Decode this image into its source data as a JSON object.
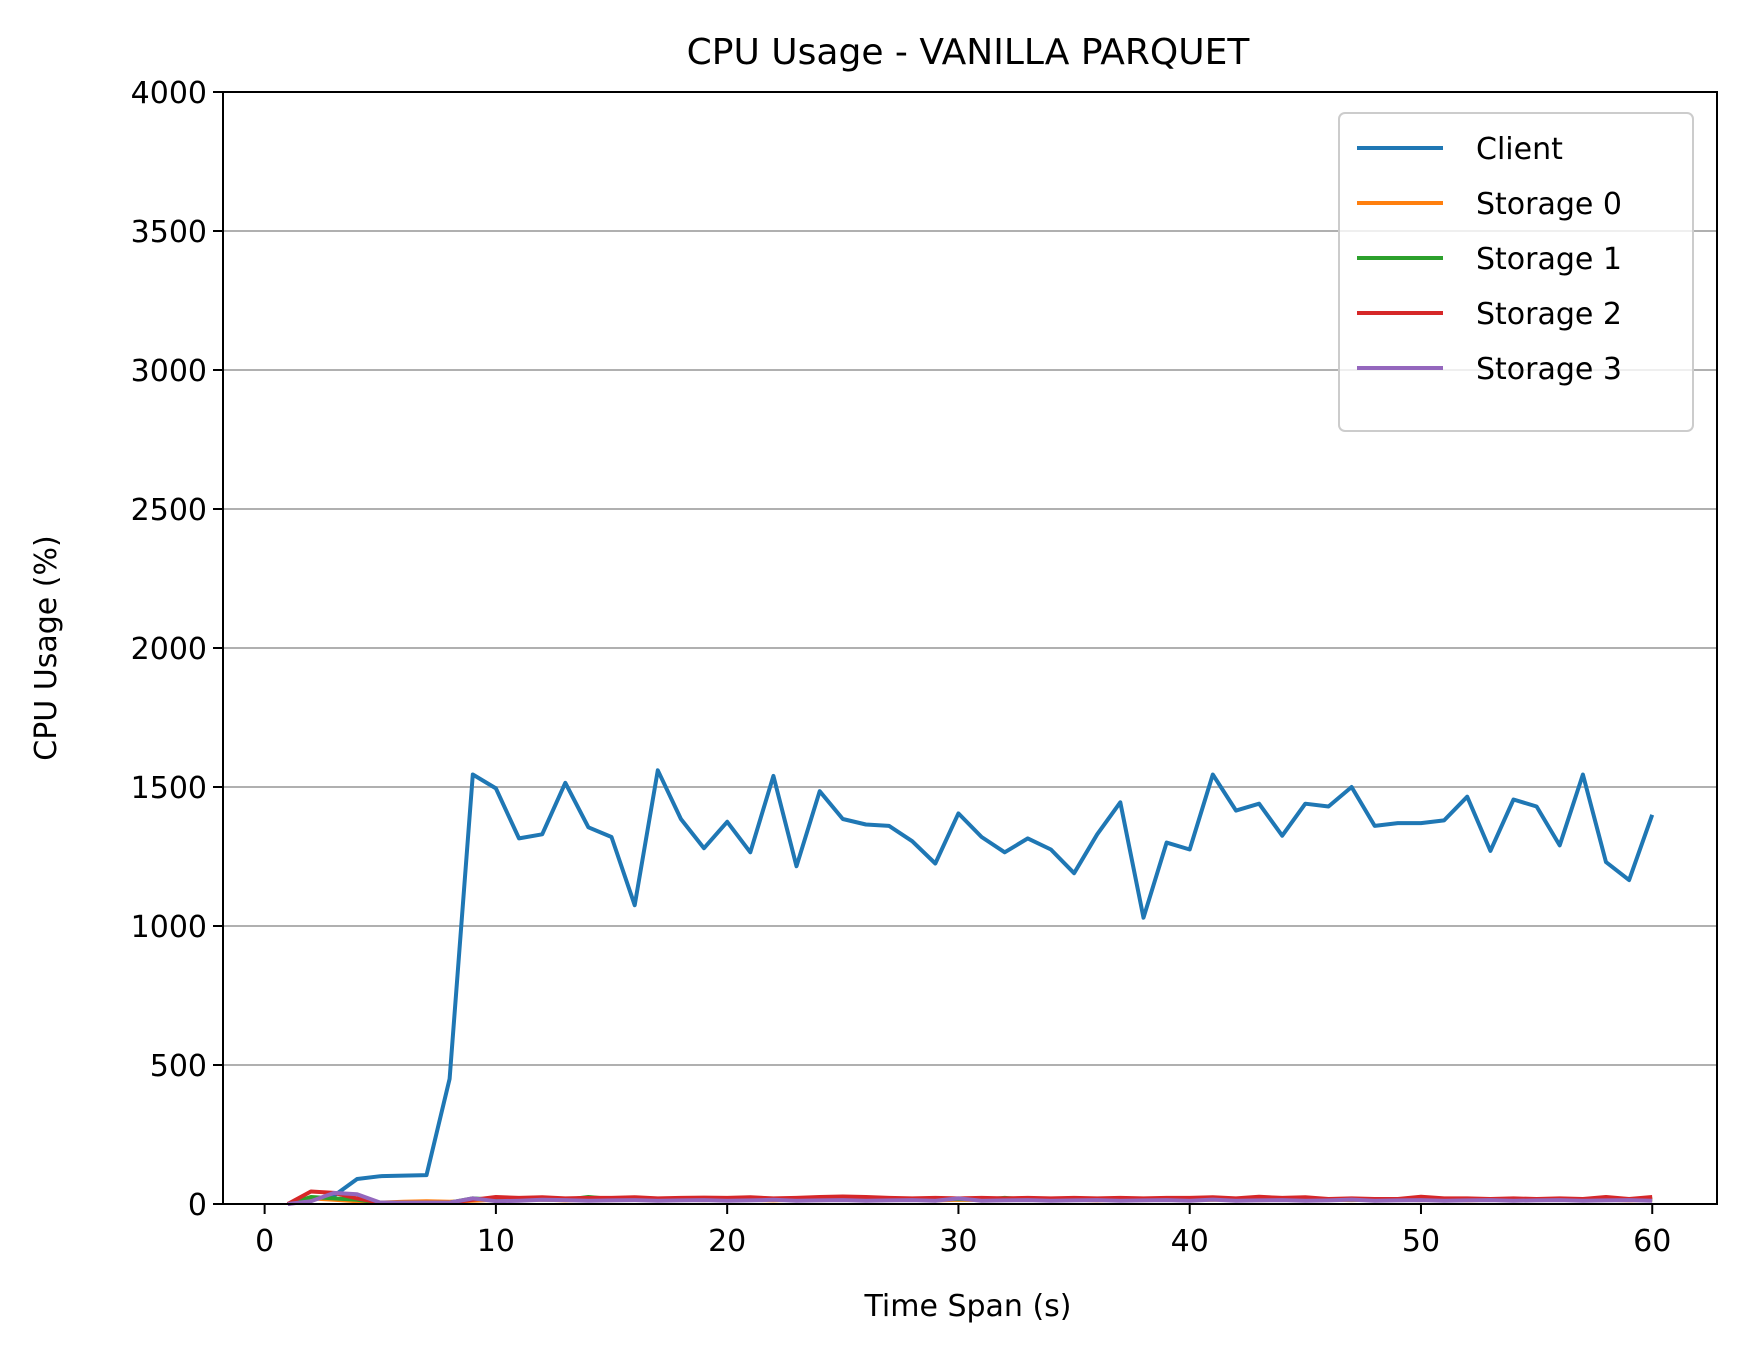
{
  "chart_data": {
    "type": "line",
    "title": "CPU Usage - VANILLA PARQUET",
    "xlabel": "Time Span (s)",
    "ylabel": "CPU Usage (%)",
    "xlim": [
      -1.8,
      62.8
    ],
    "ylim": [
      0,
      4000
    ],
    "xticks": [
      0,
      10,
      20,
      30,
      40,
      50,
      60
    ],
    "yticks": [
      0,
      500,
      1000,
      1500,
      2000,
      2500,
      3000,
      3500,
      4000
    ],
    "grid": "horizontal",
    "legend_position": "top-right",
    "x": [
      1,
      2,
      3,
      4,
      5,
      6,
      7,
      8,
      9,
      10,
      11,
      12,
      13,
      14,
      15,
      16,
      17,
      18,
      19,
      20,
      21,
      22,
      23,
      24,
      25,
      26,
      27,
      28,
      29,
      30,
      31,
      32,
      33,
      34,
      35,
      36,
      37,
      38,
      39,
      40,
      41,
      42,
      43,
      44,
      45,
      46,
      47,
      48,
      49,
      50,
      51,
      52,
      53,
      54,
      55,
      56,
      57,
      58,
      59,
      60
    ],
    "series": [
      {
        "name": "Client",
        "color": "#1f77b4",
        "values": [
          0,
          15,
          30,
          90,
          100,
          102,
          104,
          450,
          1545,
          1495,
          1315,
          1330,
          1515,
          1355,
          1320,
          1075,
          1560,
          1385,
          1280,
          1375,
          1265,
          1540,
          1215,
          1485,
          1385,
          1365,
          1360,
          1305,
          1225,
          1405,
          1320,
          1265,
          1315,
          1275,
          1190,
          1330,
          1445,
          1030,
          1300,
          1275,
          1545,
          1415,
          1440,
          1325,
          1440,
          1430,
          1500,
          1360,
          1370,
          1370,
          1380,
          1465,
          1270,
          1455,
          1430,
          1290,
          1545,
          1230,
          1165,
          1400
        ]
      },
      {
        "name": "Storage 0",
        "color": "#ff7f0e",
        "values": [
          0,
          20,
          15,
          10,
          5,
          8,
          10,
          8,
          12,
          15,
          14,
          16,
          13,
          15,
          14,
          16,
          13,
          15,
          14,
          16,
          15,
          13,
          16,
          14,
          15,
          14,
          16,
          15,
          13,
          15,
          14,
          16,
          15,
          14,
          15,
          13,
          16,
          14,
          15,
          14,
          15,
          16,
          14,
          15,
          13,
          15,
          14,
          16,
          15,
          14,
          15,
          13,
          15,
          14,
          16,
          15,
          14,
          15,
          13,
          15
        ]
      },
      {
        "name": "Storage 1",
        "color": "#2ca02c",
        "values": [
          0,
          25,
          20,
          15,
          5,
          5,
          5,
          5,
          20,
          15,
          18,
          16,
          15,
          25,
          18,
          20,
          16,
          18,
          15,
          17,
          16,
          18,
          15,
          17,
          16,
          18,
          15,
          17,
          16,
          18,
          15,
          22,
          16,
          18,
          15,
          17,
          16,
          18,
          15,
          17,
          16,
          18,
          15,
          17,
          16,
          18,
          15,
          17,
          16,
          18,
          15,
          17,
          16,
          18,
          15,
          17,
          16,
          18,
          15,
          17
        ]
      },
      {
        "name": "Storage 2",
        "color": "#d62728",
        "values": [
          0,
          45,
          40,
          20,
          5,
          5,
          5,
          5,
          15,
          25,
          22,
          24,
          20,
          22,
          22,
          24,
          20,
          22,
          23,
          22,
          24,
          20,
          22,
          25,
          27,
          25,
          22,
          20,
          22,
          20,
          22,
          20,
          22,
          20,
          22,
          20,
          22,
          20,
          22,
          22,
          24,
          20,
          26,
          22,
          24,
          18,
          20,
          18,
          18,
          26,
          20,
          20,
          18,
          20,
          18,
          20,
          18,
          25,
          18,
          25
        ]
      },
      {
        "name": "Storage 3",
        "color": "#9467bd",
        "values": [
          0,
          10,
          40,
          35,
          5,
          5,
          5,
          5,
          20,
          10,
          12,
          15,
          14,
          12,
          13,
          14,
          12,
          13,
          14,
          12,
          13,
          15,
          12,
          13,
          14,
          12,
          13,
          14,
          12,
          20,
          12,
          13,
          14,
          12,
          13,
          14,
          12,
          13,
          14,
          12,
          16,
          12,
          13,
          14,
          12,
          13,
          16,
          12,
          13,
          14,
          12,
          13,
          14,
          12,
          13,
          14,
          12,
          13,
          14,
          12
        ]
      }
    ]
  }
}
